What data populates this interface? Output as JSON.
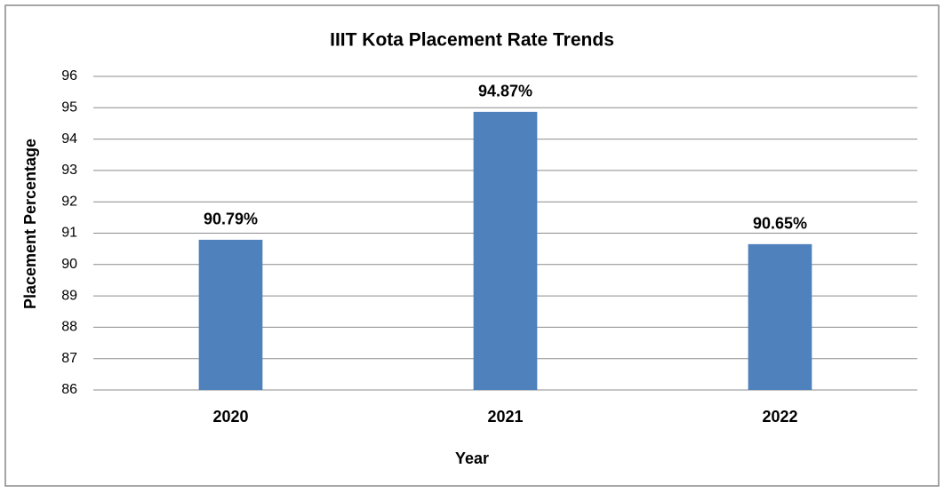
{
  "chart_data": {
    "type": "bar",
    "title": "IIIT Kota Placement Rate Trends",
    "x_label": "Year",
    "y_label": "Placement Percentage",
    "categories": [
      "2020",
      "2021",
      "2022"
    ],
    "values": [
      90.79,
      94.87,
      90.65
    ],
    "value_labels": [
      "90.79%",
      "94.87%",
      "90.65%"
    ],
    "color": "#4f81bd",
    "ylim": [
      86,
      96
    ],
    "yticks": [
      86,
      87,
      88,
      89,
      90,
      91,
      92,
      93,
      94,
      95,
      96
    ],
    "grid": true
  }
}
